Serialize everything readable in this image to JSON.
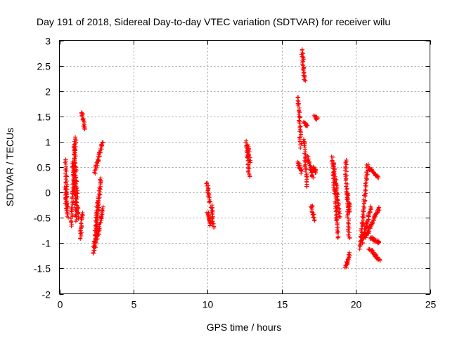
{
  "chart_data": {
    "type": "scatter",
    "title": "Day 191 of 2018, Sidereal Day-to-day VTEC variation (SDTVAR) for receiver wilu",
    "xlabel": "GPS time / hours",
    "ylabel": "SDTVAR / TECUs",
    "xlim": [
      0,
      25
    ],
    "ylim": [
      -2,
      3
    ],
    "xticks": [
      0,
      5,
      10,
      15,
      20,
      25
    ],
    "yticks": [
      -2,
      -1.5,
      -1,
      -0.5,
      0,
      0.5,
      1,
      1.5,
      2,
      2.5,
      3
    ],
    "xtick_labels": [
      "0",
      "5",
      "10",
      "15",
      "20",
      "25"
    ],
    "ytick_labels": [
      "-2",
      "-1.5",
      "-1",
      "-0.5",
      "0",
      "0.5",
      "1",
      "1.5",
      "2",
      "2.5",
      "3"
    ],
    "grid": true,
    "marker": "+",
    "marker_color": "#ff0000",
    "series": [
      {
        "name": "SDTVAR",
        "tracks": [
          {
            "x": [
              0.4,
              0.55
            ],
            "y": [
              0.65,
              -0.5
            ]
          },
          {
            "x": [
              0.4,
              0.5
            ],
            "y": [
              0.1,
              -0.4
            ]
          },
          {
            "x": [
              0.8,
              1.1
            ],
            "y": [
              -0.65,
              1.1
            ]
          },
          {
            "x": [
              0.9,
              1.15
            ],
            "y": [
              0.6,
              -0.55
            ]
          },
          {
            "x": [
              1.0,
              1.25
            ],
            "y": [
              1.0,
              -0.5
            ]
          },
          {
            "x": [
              1.4,
              1.55
            ],
            "y": [
              -0.9,
              -0.4
            ]
          },
          {
            "x": [
              1.5,
              1.7
            ],
            "y": [
              1.6,
              1.25
            ]
          },
          {
            "x": [
              2.3,
              2.6
            ],
            "y": [
              -1.2,
              -0.1
            ]
          },
          {
            "x": [
              2.4,
              2.8
            ],
            "y": [
              -1.1,
              0.3
            ]
          },
          {
            "x": [
              2.4,
              2.9
            ],
            "y": [
              0.4,
              1.0
            ]
          },
          {
            "x": [
              2.6,
              2.9
            ],
            "y": [
              -0.9,
              -0.3
            ]
          },
          {
            "x": [
              9.95,
              10.15
            ],
            "y": [
              0.2,
              -0.2
            ]
          },
          {
            "x": [
              10.0,
              10.2
            ],
            "y": [
              -0.4,
              -0.65
            ]
          },
          {
            "x": [
              10.25,
              10.4
            ],
            "y": [
              -0.25,
              -0.68
            ]
          },
          {
            "x": [
              12.6,
              12.8
            ],
            "y": [
              1.0,
              0.3
            ]
          },
          {
            "x": [
              12.7,
              12.85
            ],
            "y": [
              0.95,
              0.6
            ]
          },
          {
            "x": [
              16.1,
              16.3
            ],
            "y": [
              1.9,
              0.9
            ]
          },
          {
            "x": [
              16.1,
              16.35
            ],
            "y": [
              0.6,
              0.4
            ]
          },
          {
            "x": [
              16.35,
              16.55
            ],
            "y": [
              2.8,
              2.2
            ]
          },
          {
            "x": [
              16.5,
              16.7
            ],
            "y": [
              1.4,
              1.3
            ]
          },
          {
            "x": [
              16.5,
              16.7
            ],
            "y": [
              1.05,
              0.1
            ]
          },
          {
            "x": [
              16.75,
              17.1
            ],
            "y": [
              0.7,
              0.3
            ]
          },
          {
            "x": [
              17.0,
              17.2
            ],
            "y": [
              -0.25,
              -0.55
            ]
          },
          {
            "x": [
              17.1,
              17.3
            ],
            "y": [
              0.5,
              0.4
            ]
          },
          {
            "x": [
              17.2,
              17.4
            ],
            "y": [
              1.5,
              1.45
            ]
          },
          {
            "x": [
              18.4,
              18.8
            ],
            "y": [
              0.7,
              -0.9
            ]
          },
          {
            "x": [
              18.5,
              18.9
            ],
            "y": [
              0.6,
              -0.5
            ]
          },
          {
            "x": [
              19.3,
              19.6
            ],
            "y": [
              -1.5,
              -1.2
            ]
          },
          {
            "x": [
              19.3,
              19.55
            ],
            "y": [
              0.65,
              -0.9
            ]
          },
          {
            "x": [
              19.4,
              19.6
            ],
            "y": [
              0.0,
              -0.4
            ]
          },
          {
            "x": [
              20.3,
              20.8
            ],
            "y": [
              -1.1,
              0.55
            ]
          },
          {
            "x": [
              20.4,
              21.0
            ],
            "y": [
              -1.0,
              -0.3
            ]
          },
          {
            "x": [
              20.6,
              21.6
            ],
            "y": [
              -0.9,
              -0.3
            ]
          },
          {
            "x": [
              20.8,
              21.5
            ],
            "y": [
              0.5,
              0.3
            ]
          },
          {
            "x": [
              20.9,
              21.6
            ],
            "y": [
              -1.1,
              -1.35
            ]
          },
          {
            "x": [
              21.0,
              21.6
            ],
            "y": [
              -0.9,
              -1.0
            ]
          }
        ]
      }
    ]
  }
}
